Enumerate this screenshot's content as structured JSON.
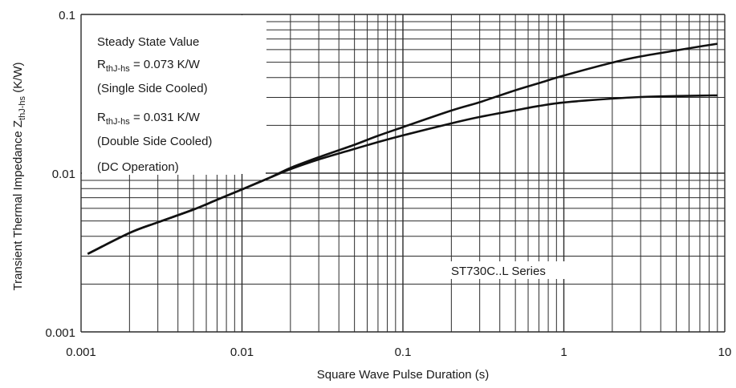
{
  "chart_data": {
    "type": "line",
    "x_scale": "log",
    "y_scale": "log",
    "xlim": [
      0.001,
      10
    ],
    "ylim": [
      0.001,
      0.1
    ],
    "xlabel": "Square Wave Pulse Duration (s)",
    "ylabel": {
      "main": "Transient Thermal Impedance Z",
      "sub": "thJ-hs",
      "unit": " (K/W)"
    },
    "x_ticks": [
      {
        "value": 0.001,
        "label": "0.001"
      },
      {
        "value": 0.01,
        "label": "0.01"
      },
      {
        "value": 0.1,
        "label": "0.1"
      },
      {
        "value": 1,
        "label": "1"
      },
      {
        "value": 10,
        "label": "10"
      }
    ],
    "y_ticks": [
      {
        "value": 0.1,
        "label": "0.1"
      },
      {
        "value": 0.01,
        "label": "0.01"
      },
      {
        "value": 0.001,
        "label": "0.001"
      }
    ],
    "grid": true,
    "legend": {
      "lines": [
        {
          "text": "Steady State Value"
        },
        {
          "text": "R",
          "sub": "thJ-hs",
          "rest": " = 0.073 K/W"
        },
        {
          "text": "(Single Side Cooled)"
        },
        {
          "text": "R",
          "sub": "thJ-hs",
          "rest": " = 0.031 K/W"
        },
        {
          "text": "(Double Side Cooled)"
        },
        {
          "text": "(DC Operation)"
        }
      ]
    },
    "annotation": "ST730C..L Series",
    "series": [
      {
        "x": [
          0.0011,
          0.002,
          0.003,
          0.005,
          0.007,
          0.01,
          0.015,
          0.02,
          0.03,
          0.05,
          0.07,
          0.1,
          0.2,
          0.3,
          0.5,
          0.7,
          1,
          2,
          3,
          5,
          7,
          9
        ],
        "values": [
          0.0031,
          0.0042,
          0.0049,
          0.0059,
          0.0068,
          0.0079,
          0.0094,
          0.0108,
          0.0126,
          0.0151,
          0.0172,
          0.0195,
          0.0248,
          0.028,
          0.0333,
          0.0369,
          0.0412,
          0.0497,
          0.0544,
          0.0593,
          0.0628,
          0.0653
        ]
      },
      {
        "x": [
          0.0011,
          0.002,
          0.003,
          0.005,
          0.007,
          0.01,
          0.015,
          0.02,
          0.03,
          0.05,
          0.07,
          0.1,
          0.2,
          0.3,
          0.5,
          0.7,
          1,
          2,
          3,
          5,
          7,
          9
        ],
        "values": [
          0.0031,
          0.0042,
          0.0049,
          0.0059,
          0.0068,
          0.0079,
          0.0094,
          0.0106,
          0.0122,
          0.0142,
          0.0157,
          0.0173,
          0.0206,
          0.0226,
          0.0249,
          0.0265,
          0.0279,
          0.0295,
          0.0302,
          0.0306,
          0.0308,
          0.0309
        ]
      }
    ]
  }
}
